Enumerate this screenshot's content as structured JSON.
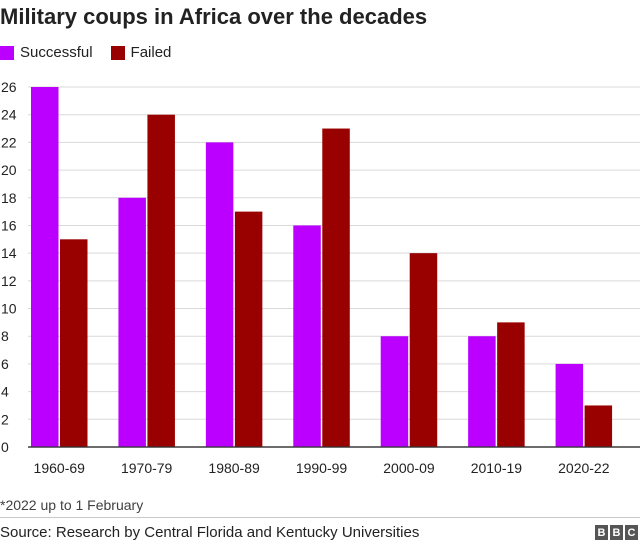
{
  "chart_data": {
    "type": "bar",
    "title": "Military coups in Africa over the decades",
    "categories": [
      "1960-69",
      "1970-79",
      "1980-89",
      "1990-99",
      "2000-09",
      "2010-19",
      "2020-22"
    ],
    "series": [
      {
        "name": "Successful",
        "color": "#bb00ff",
        "values": [
          26,
          18,
          22,
          16,
          8,
          8,
          6
        ]
      },
      {
        "name": "Failed",
        "color": "#990000",
        "values": [
          15,
          24,
          17,
          23,
          14,
          9,
          3
        ]
      }
    ],
    "ylim": [
      0,
      26
    ],
    "yticks": [
      0,
      2,
      4,
      6,
      8,
      10,
      12,
      14,
      16,
      18,
      20,
      22,
      24,
      26
    ],
    "xlabel": "",
    "ylabel": "",
    "grid": true,
    "legend": "top-left",
    "footnote": "*2022 up to 1 February",
    "source": "Source: Research by Central Florida and Kentucky Universities"
  },
  "logo": {
    "letters": [
      "B",
      "B",
      "C"
    ]
  }
}
